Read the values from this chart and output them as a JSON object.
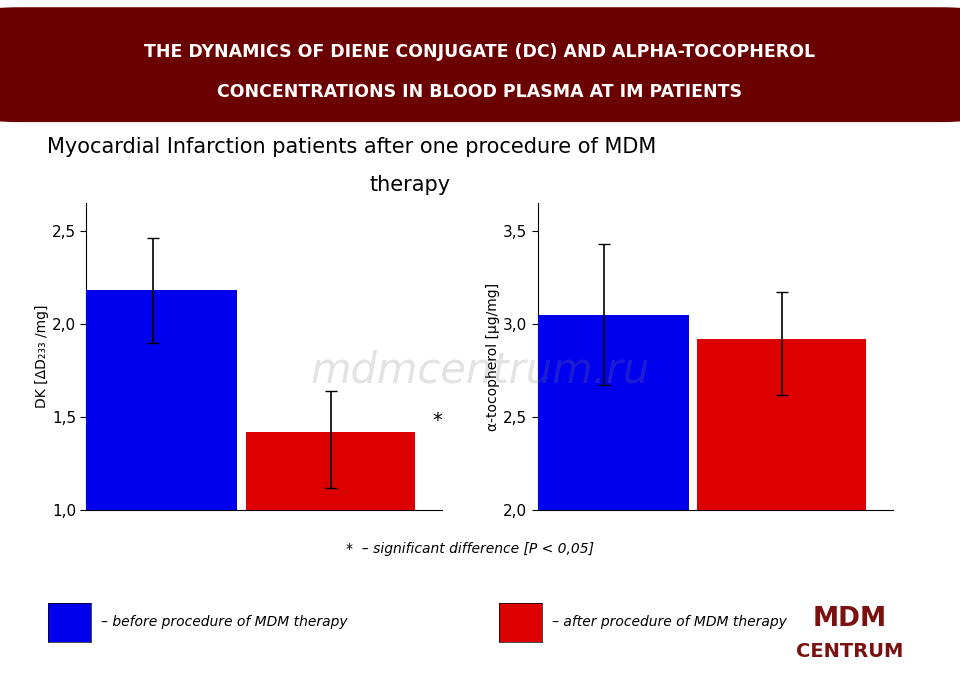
{
  "title_line1": "THE DYNAMICS OF DIENE CONJUGATE (DC) AND ALPHA-TOCOPHEROL",
  "title_line2": "CONCENTRATIONS IN BLOOD PLASMA AT IM PATIENTS",
  "subtitle_line1": "Myocardial Infarction patients after one procedure of MDM",
  "subtitle_line2": "therapy",
  "title_bg_color": "#6B0000",
  "title_text_color": "#FFFFFF",
  "background_color": "#FFFFFF",
  "left_chart": {
    "ylabel": "DK [ΔD₂₃₃ /mg]",
    "yticks": [
      1.0,
      1.5,
      2.0,
      2.5
    ],
    "ytick_labels": [
      "1,0",
      "1,5",
      "2,0",
      "2,5"
    ],
    "ylim": [
      1.0,
      2.65
    ],
    "blue_bar": 2.18,
    "red_bar": 1.42,
    "blue_err_low": 0.28,
    "blue_err_high": 0.28,
    "red_err_low": 0.3,
    "red_err_high": 0.22,
    "star": true
  },
  "right_chart": {
    "ylabel": "α-tocopherol [µg/mg]",
    "yticks": [
      2.0,
      2.5,
      3.0,
      3.5
    ],
    "ytick_labels": [
      "2,0",
      "2,5",
      "3,0",
      "3,5"
    ],
    "ylim": [
      2.0,
      3.65
    ],
    "blue_bar": 3.05,
    "red_bar": 2.92,
    "blue_err_low": 0.38,
    "blue_err_high": 0.38,
    "red_err_low": 0.3,
    "red_err_high": 0.25,
    "star": false
  },
  "bar_width": 0.38,
  "bar_gap": 0.02,
  "blue_color": "#0000EE",
  "red_color": "#DD0000",
  "footnote": "*  – significant difference [P < 0,05]",
  "legend_blue": "– before procedure of MDM therapy",
  "legend_red": "– after procedure of MDM therapy",
  "mdm_text_color": "#7B1010",
  "watermark": "mdmcentrum.ru"
}
